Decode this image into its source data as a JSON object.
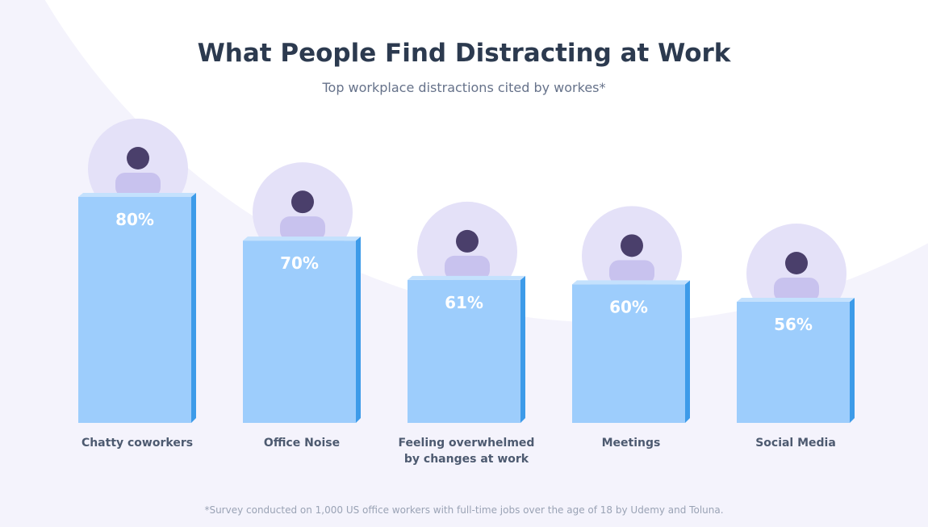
{
  "chart_data": {
    "type": "bar",
    "title": "What People Find Distracting at Work",
    "subtitle": "Top workplace distractions cited by workes*",
    "categories": [
      "Chatty coworkers",
      "Office Noise",
      "Feeling overwhelmed by changes at work",
      "Meetings",
      "Social Media"
    ],
    "values": [
      80,
      70,
      61,
      60,
      56
    ],
    "value_labels": [
      "80%",
      "70%",
      "61%",
      "60%",
      "56%"
    ],
    "color": "#9dcdfc",
    "footnote": "*Survey conducted on 1,000 US office workers with full-time jobs over the age of 18 by Udemy and Toluna."
  }
}
